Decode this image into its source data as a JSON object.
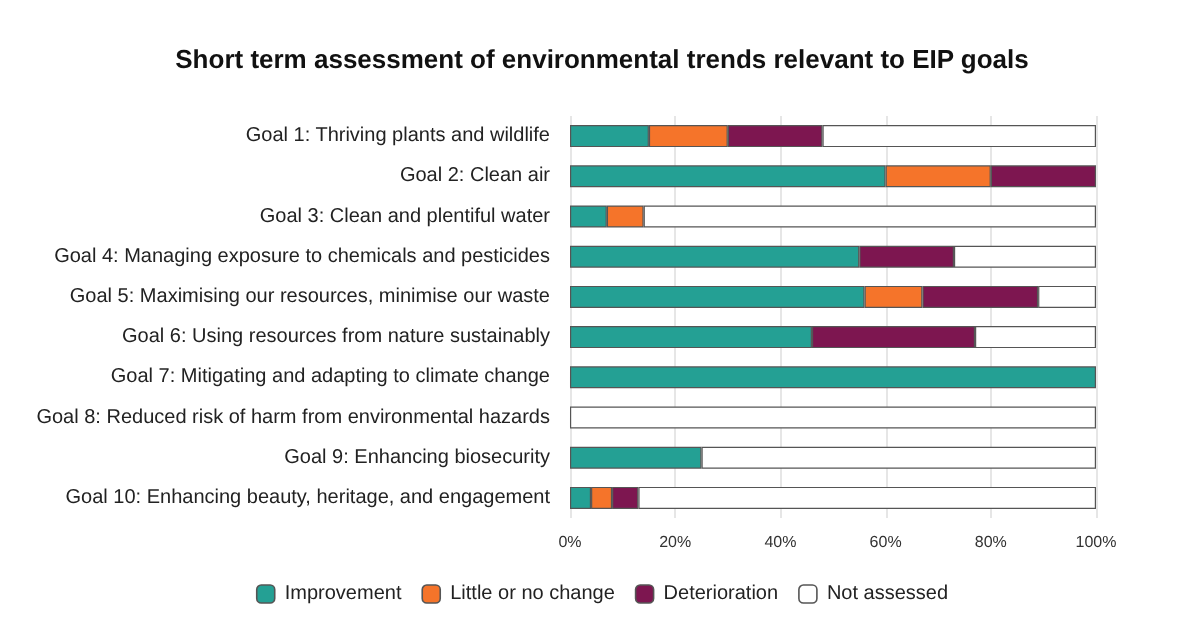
{
  "chart_data": {
    "type": "bar",
    "orientation": "horizontal",
    "stacked": true,
    "title": "Short term assessment of environmental trends relevant to EIP goals",
    "categories": [
      "Goal 1: Thriving plants and wildlife",
      "Goal 2: Clean air",
      "Goal 3: Clean and plentiful water",
      "Goal 4: Managing exposure to chemicals and pesticides",
      "Goal 5: Maximising our resources, minimise our waste",
      "Goal 6: Using resources from nature sustainably",
      "Goal 7: Mitigating and adapting to climate change",
      "Goal 8: Reduced risk of harm from environmental hazards",
      "Goal 9: Enhancing biosecurity",
      "Goal 10: Enhancing beauty, heritage, and engagement"
    ],
    "series": [
      {
        "name": "Improvement",
        "color": "#24a094",
        "values": [
          15,
          60,
          7,
          55,
          56,
          46,
          100,
          null,
          25,
          4
        ]
      },
      {
        "name": "Little or no change",
        "color": "#f5742a",
        "values": [
          15,
          20,
          7,
          null,
          11,
          null,
          null,
          null,
          null,
          4
        ]
      },
      {
        "name": "Deterioration",
        "color": "#7d1650",
        "values": [
          18,
          20,
          null,
          18,
          22,
          31,
          null,
          null,
          null,
          5
        ]
      },
      {
        "name": "Not assessed",
        "color": "#ffffff",
        "values": [
          52,
          null,
          86,
          27,
          11,
          23,
          null,
          100,
          75,
          87
        ]
      }
    ],
    "xlim": [
      0,
      100
    ],
    "xticks": [
      {
        "value": 0,
        "label": "0%"
      },
      {
        "value": 20,
        "label": "20%"
      },
      {
        "value": 40,
        "label": "40%"
      },
      {
        "value": 60,
        "label": "60%"
      },
      {
        "value": 80,
        "label": "80%"
      },
      {
        "value": 100,
        "label": "100%"
      }
    ],
    "grid": "x",
    "legend": "bottom"
  }
}
